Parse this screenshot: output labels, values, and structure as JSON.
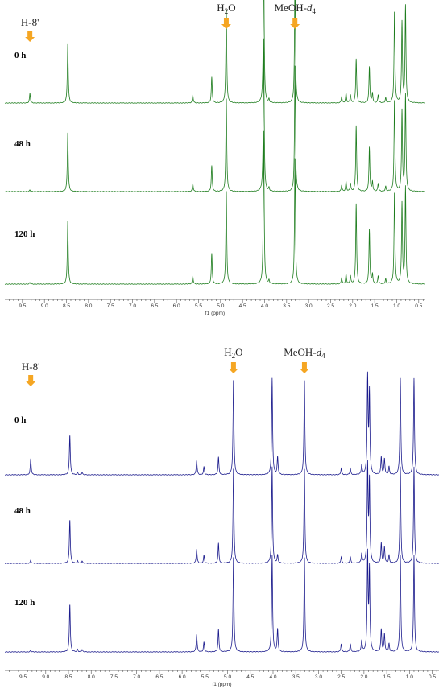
{
  "chart_data": [
    {
      "type": "line",
      "title": "",
      "xlabel": "f1 (ppm)",
      "ylabel": "",
      "xlim": [
        9.9,
        0.35
      ],
      "x_reversed": true,
      "tick_labels": [
        "9.5",
        "9.0",
        "8.5",
        "8.0",
        "7.5",
        "7.0",
        "6.5",
        "6.0",
        "5.5",
        "5.0",
        "4.5",
        "4.0",
        "3.5",
        "3.0",
        "2.5",
        "2.0",
        "1.5",
        "1.0",
        "0.5"
      ],
      "color": "#1e7d1e",
      "annotations": [
        {
          "label": "H-8'",
          "ppm": 9.33,
          "color": "#f5a623"
        },
        {
          "label": "H2O",
          "label_main": "H",
          "label_sub": "2",
          "label_tail": "O",
          "ppm": 4.87,
          "color": "#f5a623"
        },
        {
          "label": "MeOH-d4",
          "label_main": "MeOH-",
          "label_italic": "d",
          "label_sub": "4",
          "ppm": 3.31,
          "color": "#f5a623"
        }
      ],
      "series": [
        {
          "name": "0 h",
          "peaks": [
            [
              9.33,
              12
            ],
            [
              8.47,
              75
            ],
            [
              5.63,
              10
            ],
            [
              5.2,
              32
            ],
            [
              4.87,
              118
            ],
            [
              4.02,
              190
            ],
            [
              3.9,
              4
            ],
            [
              3.31,
              160
            ],
            [
              2.25,
              8
            ],
            [
              2.15,
              12
            ],
            [
              2.05,
              10
            ],
            [
              1.92,
              55
            ],
            [
              1.62,
              45
            ],
            [
              1.55,
              12
            ],
            [
              1.42,
              10
            ],
            [
              1.25,
              6
            ],
            [
              1.05,
              115
            ],
            [
              0.88,
              100
            ],
            [
              0.8,
              120
            ]
          ]
        },
        {
          "name": "48 h",
          "peaks": [
            [
              9.33,
              2
            ],
            [
              8.47,
              75
            ],
            [
              5.63,
              10
            ],
            [
              5.2,
              32
            ],
            [
              4.87,
              118
            ],
            [
              4.02,
              190
            ],
            [
              3.9,
              4
            ],
            [
              3.31,
              160
            ],
            [
              2.25,
              8
            ],
            [
              2.15,
              12
            ],
            [
              2.05,
              10
            ],
            [
              1.92,
              82
            ],
            [
              1.62,
              55
            ],
            [
              1.55,
              12
            ],
            [
              1.42,
              10
            ],
            [
              1.25,
              6
            ],
            [
              1.05,
              115
            ],
            [
              0.88,
              100
            ],
            [
              0.8,
              120
            ]
          ]
        },
        {
          "name": "120 h",
          "peaks": [
            [
              9.33,
              2
            ],
            [
              8.47,
              80
            ],
            [
              5.63,
              10
            ],
            [
              5.2,
              38
            ],
            [
              4.87,
              118
            ],
            [
              4.02,
              190
            ],
            [
              3.9,
              4
            ],
            [
              3.31,
              160
            ],
            [
              2.25,
              8
            ],
            [
              2.15,
              12
            ],
            [
              2.05,
              10
            ],
            [
              1.92,
              100
            ],
            [
              1.62,
              68
            ],
            [
              1.55,
              12
            ],
            [
              1.42,
              10
            ],
            [
              1.25,
              6
            ],
            [
              1.05,
              115
            ],
            [
              0.88,
              100
            ],
            [
              0.8,
              120
            ]
          ]
        }
      ]
    },
    {
      "type": "line",
      "title": "",
      "xlabel": "f1 (ppm)",
      "ylabel": "",
      "xlim": [
        9.9,
        0.35
      ],
      "x_reversed": true,
      "tick_labels": [
        "9.5",
        "9.0",
        "8.5",
        "8.0",
        "7.5",
        "7.0",
        "6.5",
        "6.0",
        "5.5",
        "5.0",
        "4.5",
        "4.0",
        "3.5",
        "3.0",
        "2.5",
        "2.0",
        "1.5",
        "1.0",
        "0.5"
      ],
      "color": "#1a1a8c",
      "annotations": [
        {
          "label": "H-8'",
          "ppm": 9.33,
          "color": "#f5a623"
        },
        {
          "label": "H2O",
          "label_main": "H",
          "label_sub": "2",
          "label_tail": "O",
          "ppm": 4.87,
          "color": "#f5a623"
        },
        {
          "label": "MeOH-d4",
          "label_main": "MeOH-",
          "label_italic": "d",
          "label_sub": "4",
          "ppm": 3.31,
          "color": "#f5a623"
        }
      ],
      "series": [
        {
          "name": "0 h",
          "peaks": [
            [
              9.33,
              20
            ],
            [
              8.47,
              50
            ],
            [
              8.3,
              3
            ],
            [
              8.2,
              3
            ],
            [
              5.68,
              18
            ],
            [
              5.52,
              10
            ],
            [
              5.2,
              22
            ],
            [
              4.87,
              120
            ],
            [
              4.02,
              120
            ],
            [
              3.9,
              22
            ],
            [
              3.31,
              120
            ],
            [
              2.5,
              8
            ],
            [
              2.3,
              8
            ],
            [
              2.05,
              12
            ],
            [
              1.92,
              120
            ],
            [
              1.88,
              100
            ],
            [
              1.62,
              22
            ],
            [
              1.55,
              20
            ],
            [
              1.45,
              10
            ],
            [
              1.2,
              120
            ],
            [
              0.9,
              120
            ]
          ]
        },
        {
          "name": "48 h",
          "peaks": [
            [
              9.33,
              4
            ],
            [
              8.47,
              55
            ],
            [
              8.3,
              3
            ],
            [
              8.2,
              3
            ],
            [
              5.68,
              18
            ],
            [
              5.52,
              10
            ],
            [
              5.2,
              25
            ],
            [
              4.87,
              120
            ],
            [
              4.02,
              120
            ],
            [
              3.9,
              10
            ],
            [
              3.31,
              120
            ],
            [
              2.5,
              8
            ],
            [
              2.3,
              8
            ],
            [
              2.05,
              12
            ],
            [
              1.92,
              120
            ],
            [
              1.88,
              100
            ],
            [
              1.62,
              25
            ],
            [
              1.55,
              20
            ],
            [
              1.45,
              10
            ],
            [
              1.2,
              120
            ],
            [
              0.9,
              120
            ]
          ]
        },
        {
          "name": "120 h",
          "peaks": [
            [
              9.33,
              2
            ],
            [
              8.47,
              60
            ],
            [
              8.3,
              3
            ],
            [
              8.2,
              3
            ],
            [
              5.68,
              22
            ],
            [
              5.52,
              12
            ],
            [
              5.2,
              28
            ],
            [
              4.87,
              120
            ],
            [
              4.02,
              120
            ],
            [
              3.9,
              28
            ],
            [
              3.31,
              120
            ],
            [
              2.5,
              10
            ],
            [
              2.3,
              10
            ],
            [
              2.05,
              14
            ],
            [
              1.92,
              120
            ],
            [
              1.88,
              100
            ],
            [
              1.62,
              28
            ],
            [
              1.55,
              22
            ],
            [
              1.45,
              10
            ],
            [
              1.2,
              120
            ],
            [
              0.9,
              120
            ]
          ]
        }
      ]
    }
  ]
}
